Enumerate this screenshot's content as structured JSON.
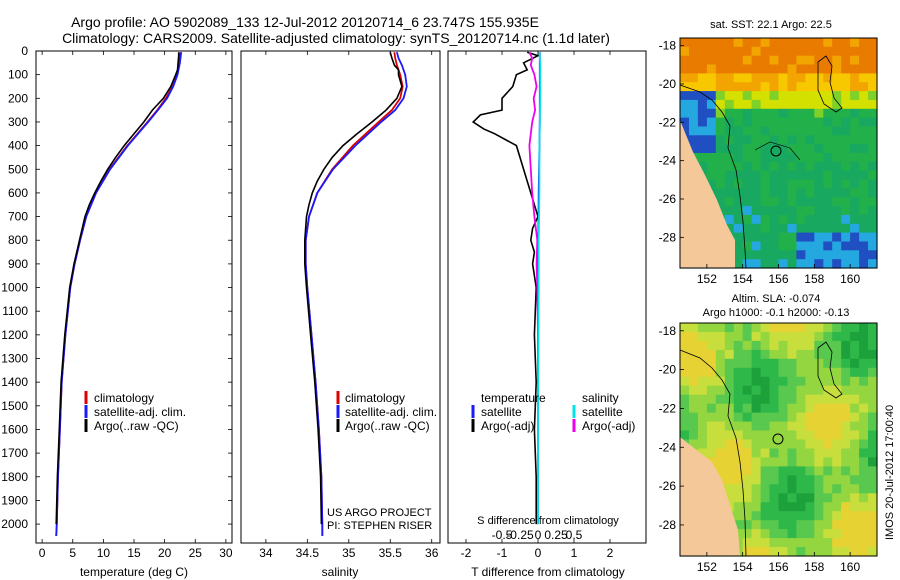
{
  "header": {
    "line1": "Argo profile: AO 5902089_133 12-Jul-2012 20120714_6 23.747S 155.935E",
    "line2": "Climatology: CARS2009. Satellite-adjusted climatology: synTS_20120714.nc (1.1d later)"
  },
  "colors": {
    "climatology": "#dd0000",
    "satellite": "#1a1aff",
    "argo": "#000000",
    "sat_salinity": "#00e5e5",
    "argo_salinity": "#ee00ee",
    "land": "#f5c89a"
  },
  "chart_data": [
    {
      "type": "line",
      "name": "temperature",
      "xlabel": "temperature (deg C)",
      "xlim": [
        -1,
        31
      ],
      "ylim": [
        0,
        2080
      ],
      "xticks": [
        "0",
        "5",
        "10",
        "15",
        "20",
        "25",
        "30"
      ],
      "xtick_values": [
        0,
        5,
        10,
        15,
        20,
        25,
        30
      ],
      "yticks": [
        "0",
        "100",
        "200",
        "300",
        "400",
        "500",
        "600",
        "700",
        "800",
        "900",
        "1000",
        "1100",
        "1200",
        "1300",
        "1400",
        "1500",
        "1600",
        "1700",
        "1800",
        "1900",
        "2000"
      ],
      "ytick_values": [
        0,
        100,
        200,
        300,
        400,
        500,
        600,
        700,
        800,
        900,
        1000,
        1100,
        1200,
        1300,
        1400,
        1500,
        1600,
        1700,
        1800,
        1900,
        2000
      ],
      "legend": [
        "climatology",
        "satellite-adj. clim.",
        "Argo(..raw -QC)"
      ],
      "series": [
        {
          "name": "climatology",
          "color": "#dd0000",
          "depth": [
            5,
            50,
            100,
            150,
            200,
            250,
            300,
            400,
            500,
            600,
            700,
            800,
            900,
            1000,
            1200,
            1400,
            1600,
            1800,
            2000,
            2050
          ],
          "values": [
            22.6,
            22.4,
            22.0,
            21.3,
            20.2,
            18.8,
            17.2,
            13.9,
            11.0,
            8.8,
            7.2,
            6.2,
            5.3,
            4.6,
            3.8,
            3.2,
            2.9,
            2.6,
            2.4,
            2.3
          ]
        },
        {
          "name": "satellite",
          "color": "#1a1aff",
          "depth": [
            5,
            50,
            100,
            150,
            200,
            250,
            300,
            400,
            500,
            600,
            700,
            800,
            900,
            1000,
            1200,
            1400,
            1600,
            1800,
            2000,
            2050
          ],
          "values": [
            22.7,
            22.5,
            22.1,
            21.4,
            20.4,
            18.9,
            17.3,
            14.0,
            11.1,
            8.8,
            7.2,
            6.2,
            5.3,
            4.6,
            3.8,
            3.2,
            2.9,
            2.6,
            2.4,
            2.3
          ]
        },
        {
          "name": "argo",
          "color": "#000000",
          "depth": [
            5,
            20,
            50,
            80,
            100,
            150,
            200,
            250,
            300,
            350,
            400,
            450,
            500,
            550,
            600,
            650,
            700,
            800,
            900,
            1000,
            1200,
            1400,
            1600,
            1800,
            2000
          ],
          "values": [
            22.3,
            22.3,
            22.2,
            22.1,
            21.8,
            21.0,
            19.8,
            18.0,
            16.6,
            15.0,
            13.4,
            12.0,
            10.7,
            9.6,
            8.6,
            7.7,
            7.0,
            6.1,
            5.2,
            4.5,
            3.7,
            3.1,
            2.8,
            2.5,
            2.3
          ]
        }
      ]
    },
    {
      "type": "line",
      "name": "salinity",
      "xlabel": "salinity",
      "xlim": [
        33.7,
        36.1
      ],
      "ylim": [
        0,
        2080
      ],
      "xticks": [
        "34",
        "34.5",
        "35",
        "35.5",
        "36"
      ],
      "xtick_values": [
        34,
        34.5,
        35,
        35.5,
        36
      ],
      "legend": [
        "climatology",
        "satellite-adj. clim.",
        "Argo(..raw -QC)"
      ],
      "annotation": [
        "US ARGO PROJECT",
        "PI: STEPHEN RISER"
      ],
      "series": [
        {
          "name": "climatology",
          "color": "#dd0000",
          "depth": [
            5,
            30,
            60,
            100,
            150,
            200,
            250,
            300,
            400,
            500,
            600,
            700,
            800,
            900,
            1000,
            1200,
            1400,
            1600,
            1800,
            2000,
            2050
          ],
          "values": [
            35.55,
            35.56,
            35.58,
            35.62,
            35.65,
            35.62,
            35.52,
            35.36,
            35.05,
            34.8,
            34.62,
            34.52,
            34.48,
            34.48,
            34.5,
            34.55,
            34.6,
            34.64,
            34.67,
            34.68,
            34.68
          ]
        },
        {
          "name": "satellite",
          "color": "#1a1aff",
          "depth": [
            5,
            30,
            60,
            100,
            150,
            200,
            250,
            300,
            400,
            500,
            600,
            700,
            800,
            900,
            1000,
            1200,
            1400,
            1600,
            1800,
            2000,
            2050
          ],
          "values": [
            35.58,
            35.6,
            35.64,
            35.68,
            35.7,
            35.66,
            35.56,
            35.39,
            35.08,
            34.81,
            34.62,
            34.52,
            34.48,
            34.48,
            34.5,
            34.55,
            34.6,
            34.64,
            34.67,
            34.68,
            34.68
          ]
        },
        {
          "name": "argo",
          "color": "#000000",
          "depth": [
            5,
            30,
            60,
            80,
            100,
            150,
            200,
            250,
            300,
            350,
            400,
            450,
            500,
            550,
            600,
            650,
            700,
            800,
            900,
            1000,
            1200,
            1400,
            1600,
            1800,
            2000
          ],
          "values": [
            35.5,
            35.52,
            35.55,
            35.6,
            35.6,
            35.64,
            35.58,
            35.45,
            35.28,
            35.1,
            34.93,
            34.8,
            34.7,
            34.62,
            34.56,
            34.52,
            34.49,
            34.47,
            34.47,
            34.49,
            34.54,
            34.59,
            34.63,
            34.66,
            34.67
          ]
        }
      ]
    },
    {
      "type": "line",
      "name": "difference",
      "xlabel": "T difference from climatology",
      "top_label": "S difference from climatology",
      "xlim": [
        -2.5,
        3.0
      ],
      "ylim": [
        0,
        2080
      ],
      "xticks": [
        "-2",
        "-1",
        "0",
        "1",
        "2"
      ],
      "xtick_values": [
        -2,
        -1,
        0,
        1,
        2
      ],
      "s_ticks": [
        "-0.5",
        "-0.25",
        "0",
        "0.25",
        "0.5"
      ],
      "s_tick_values": [
        -0.5,
        -0.25,
        0,
        0.25,
        0.5
      ],
      "legend_temperature": {
        "title": "temperature",
        "items": [
          "satellite",
          "Argo(-adj)"
        ]
      },
      "legend_salinity": {
        "title": "salinity",
        "items": [
          "satellite",
          "Argo(-adj)"
        ]
      },
      "series": [
        {
          "name": "T argo - sat",
          "color": "#000000",
          "depth": [
            5,
            20,
            50,
            80,
            100,
            150,
            200,
            250,
            270,
            300,
            330,
            350,
            400,
            450,
            500,
            550,
            600,
            650,
            700,
            750,
            800,
            850,
            900,
            1000,
            1200,
            1400,
            1600,
            1800,
            2000
          ],
          "values": [
            -0.3,
            0.0,
            -0.4,
            -0.3,
            -0.6,
            -0.7,
            -1.0,
            -1.0,
            -1.6,
            -1.8,
            -1.5,
            -1.2,
            -0.6,
            -0.5,
            -0.4,
            -0.3,
            -0.2,
            -0.1,
            0.0,
            -0.15,
            -0.2,
            -0.1,
            -0.15,
            -0.05,
            -0.1,
            -0.05,
            -0.1,
            -0.05,
            -0.05
          ]
        },
        {
          "name": "T sat",
          "color": "#1a1aff",
          "depth": [
            5,
            100,
            300,
            600,
            1000,
            2000
          ],
          "values": [
            0.05,
            0.05,
            0.05,
            0.02,
            0.0,
            0.0
          ]
        },
        {
          "name": "S argo",
          "color": "#ee00ee",
          "depth": [
            5,
            30,
            60,
            100,
            150,
            200,
            250,
            300,
            400,
            500,
            600,
            700,
            800,
            900,
            1000,
            1200,
            1400,
            1600,
            1800,
            2000
          ],
          "values": [
            -0.12,
            -0.08,
            -0.1,
            -0.05,
            -0.02,
            -0.06,
            -0.04,
            -0.08,
            -0.12,
            -0.1,
            -0.08,
            -0.05,
            -0.01,
            -0.02,
            -0.01,
            0.0,
            0.0,
            0.0,
            0.0,
            0.0
          ]
        },
        {
          "name": "S sat",
          "color": "#00e5e5",
          "depth": [
            5,
            50,
            100,
            200,
            400,
            600,
            800,
            1000,
            1500,
            2000
          ],
          "values": [
            0.02,
            0.03,
            0.03,
            0.03,
            0.02,
            0.02,
            0.01,
            0.01,
            0.0,
            0.0
          ]
        }
      ]
    }
  ],
  "maps": [
    {
      "title": [
        "sat. SST: 22.1  Argo: 22.5"
      ],
      "yticks": [
        "-18",
        "-20",
        "-22",
        "-24",
        "-26",
        "-28"
      ],
      "ytick_values": [
        -18,
        -20,
        -22,
        -24,
        -26,
        -28
      ],
      "xticks": [
        "152",
        "154",
        "156",
        "158",
        "160"
      ],
      "xtick_values": [
        152,
        154,
        156,
        158,
        160
      ],
      "xlim": [
        150.5,
        161.5
      ],
      "ylim": [
        -29.6,
        -17.6
      ],
      "colors": [
        "#e87b00",
        "#f2a500",
        "#f7c800",
        "#d4e000",
        "#7fd12a",
        "#22b04a",
        "#18a860",
        "#25a7e0",
        "#1f4fc0"
      ]
    },
    {
      "title": [
        "Altim. SLA: -0.074",
        "Argo h1000: -0.1 h2000: -0.13"
      ],
      "yticks": [
        "-18",
        "-20",
        "-22",
        "-24",
        "-26",
        "-28"
      ],
      "ytick_values": [
        -18,
        -20,
        -22,
        -24,
        -26,
        -28
      ],
      "xticks": [
        "152",
        "154",
        "156",
        "158",
        "160"
      ],
      "xtick_values": [
        152,
        154,
        156,
        158,
        160
      ],
      "xlim": [
        150.5,
        161.5
      ],
      "ylim": [
        -29.6,
        -17.6
      ],
      "colors": [
        "#1da13a",
        "#2fb84a",
        "#58c84e",
        "#93d640",
        "#c8de3c",
        "#e6d233"
      ]
    }
  ],
  "footer": {
    "side_label": "IMOS 20-Jul-2012 17:00:40"
  }
}
